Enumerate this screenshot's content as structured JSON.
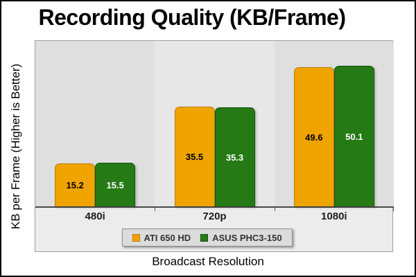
{
  "title": "Recording Quality (KB/Frame)",
  "chart_data": {
    "type": "bar",
    "title": "Recording Quality (KB/Frame)",
    "xlabel": "Broadcast Resolution",
    "ylabel": "KB per Frame (Higher is Better)",
    "categories": [
      "480i",
      "720p",
      "1080i"
    ],
    "series": [
      {
        "name": "ATI 650 HD",
        "color": "#F0A400",
        "border_color": "#BA7E00",
        "label_color": "#000000",
        "values": [
          15.2,
          35.5,
          49.6
        ]
      },
      {
        "name": "ASUS PHC3-150",
        "color": "#257A15",
        "border_color": "#13500D",
        "label_color": "#FFFFFF",
        "values": [
          15.5,
          35.3,
          50.1
        ]
      }
    ],
    "ylim": [
      0,
      59
    ],
    "grid": false,
    "legend_position": "bottom",
    "value_labels_shown": true
  },
  "colors": {
    "page_bg": "#FFFFFF",
    "frame_border": "#000000",
    "panel_bg": "#ECECEC",
    "plot_cell_odd": "#DFDFDF",
    "plot_cell_even": "#E7E7E7",
    "axis": "#4A4A4A",
    "legend_bg": "#DCDCDC",
    "legend_border": "#8C8C8C"
  }
}
